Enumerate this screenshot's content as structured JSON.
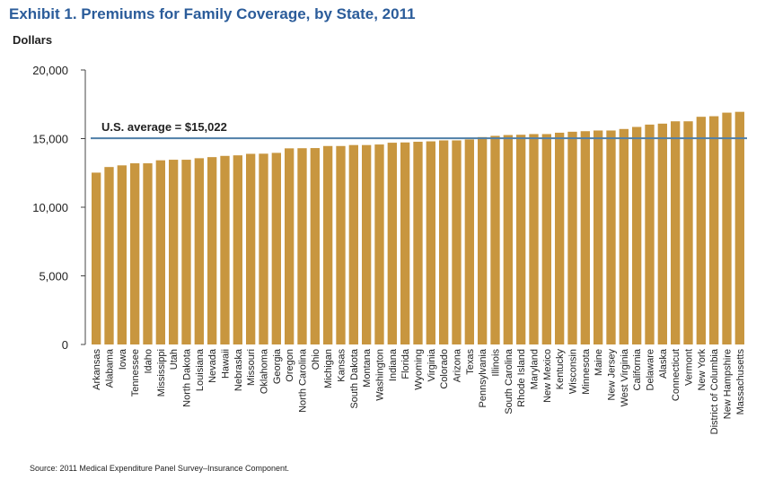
{
  "chart_data": {
    "type": "bar",
    "title": "Exhibit 1. Premiums for Family Coverage, by State, 2011",
    "ylabel": "Dollars",
    "xlabel": "",
    "ylim": [
      0,
      20000
    ],
    "yticks": [
      0,
      5000,
      10000,
      15000,
      20000
    ],
    "ytick_labels": [
      "0",
      "5,000",
      "10,000",
      "15,000",
      "20,000"
    ],
    "grid": false,
    "bar_color": "#c8963f",
    "reference_line": {
      "value": 15022,
      "label": "U.S. average = $15,022",
      "color": "#4f7fa8"
    },
    "categories": [
      "Arkansas",
      "Alabama",
      "Iowa",
      "Tennessee",
      "Idaho",
      "Mississippi",
      "Utah",
      "North Dakota",
      "Louisiana",
      "Nevada",
      "Hawaii",
      "Nebraska",
      "Missouri",
      "Oklahoma",
      "Georgia",
      "Oregon",
      "North Carolina",
      "Ohio",
      "Michigan",
      "Kansas",
      "South Dakota",
      "Montana",
      "Washington",
      "Indiana",
      "Florida",
      "Wyoming",
      "Virginia",
      "Colorado",
      "Arizona",
      "Texas",
      "Pennsylvania",
      "Illinois",
      "South Carolina",
      "Rhode Island",
      "Maryland",
      "New Mexico",
      "Kentucky",
      "Wisconsin",
      "Minnesota",
      "Maine",
      "New Jersey",
      "West Virginia",
      "California",
      "Delaware",
      "Alaska",
      "Connecticut",
      "Vermont",
      "New York",
      "District of Columbia",
      "New Hampshire",
      "Massachusetts"
    ],
    "values": [
      12520,
      12930,
      13050,
      13200,
      13200,
      13420,
      13460,
      13460,
      13570,
      13650,
      13740,
      13780,
      13890,
      13900,
      13960,
      14290,
      14300,
      14310,
      14460,
      14460,
      14530,
      14530,
      14570,
      14700,
      14720,
      14770,
      14800,
      14870,
      14870,
      14940,
      15110,
      15200,
      15260,
      15280,
      15330,
      15330,
      15430,
      15500,
      15540,
      15590,
      15590,
      15700,
      15850,
      16020,
      16090,
      16260,
      16260,
      16590,
      16630,
      16890,
      16950
    ]
  },
  "source": "Source: 2011 Medical Expenditure Panel Survey–Insurance Component."
}
